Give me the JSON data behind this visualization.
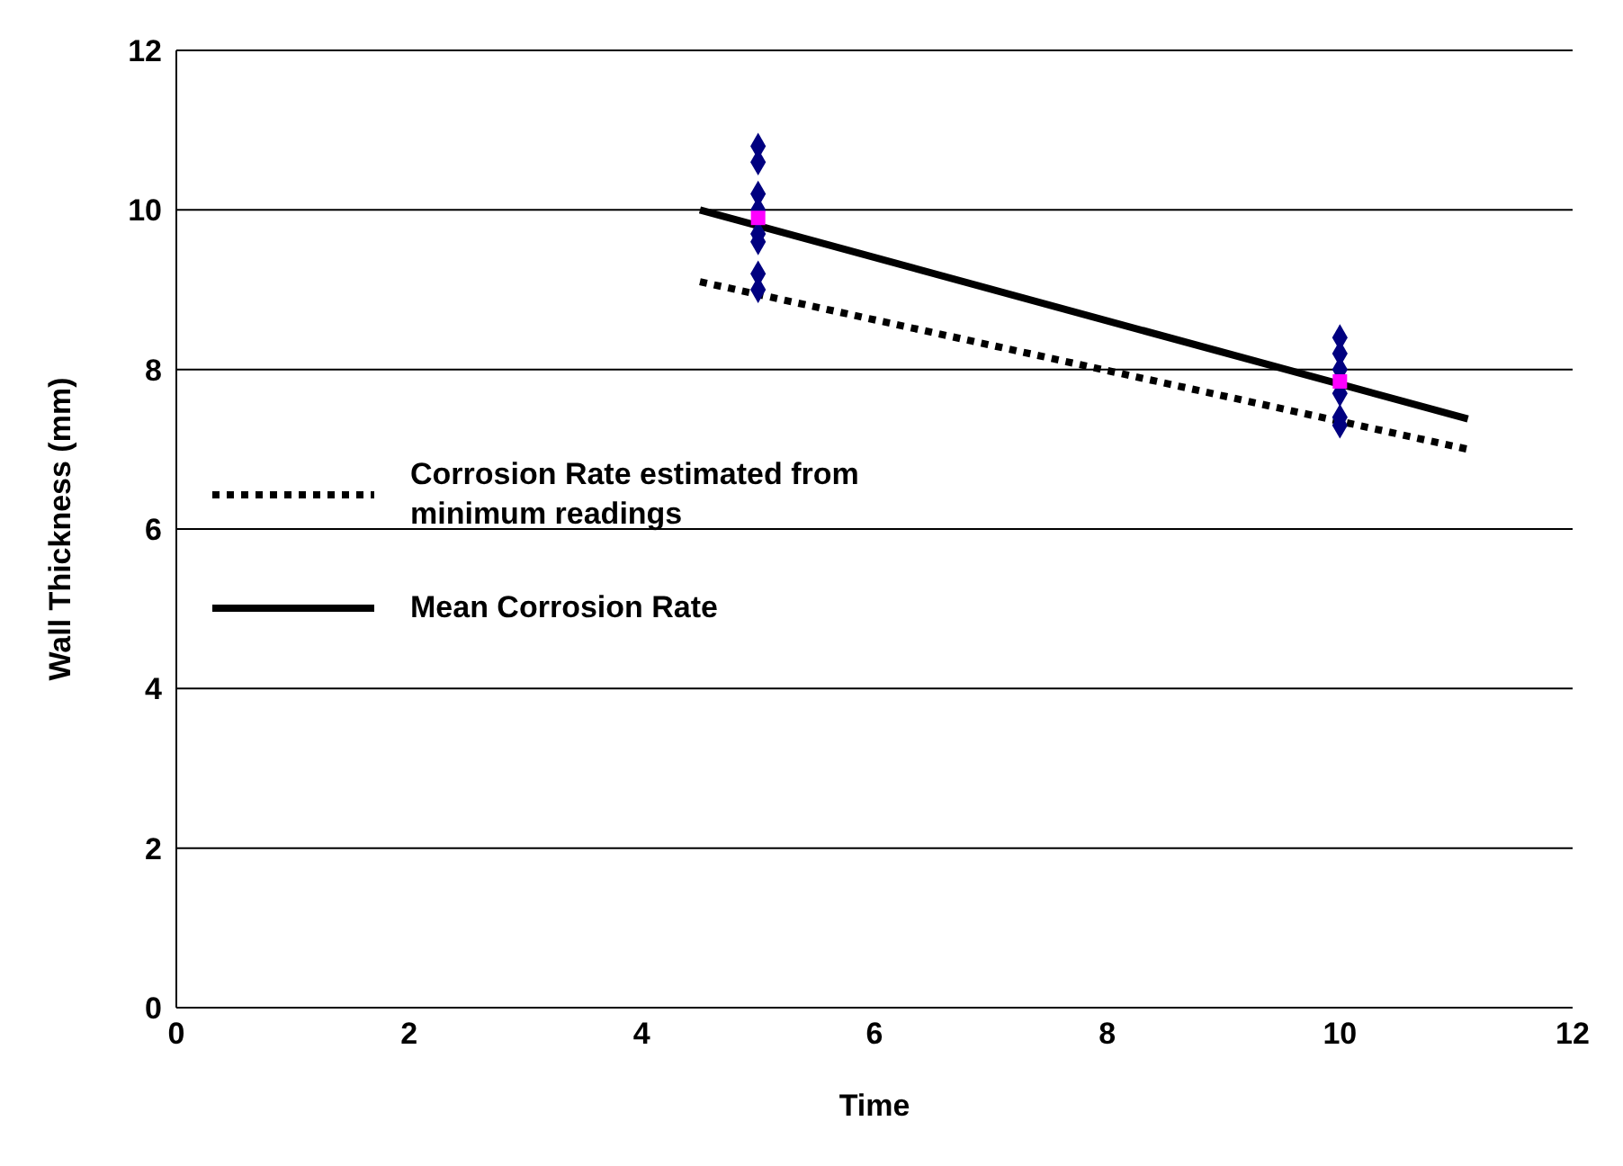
{
  "chart_data": {
    "type": "scatter",
    "xlabel": "Time",
    "ylabel": "Wall Thickness (mm)",
    "xlim": [
      0,
      12
    ],
    "xticks": [
      0,
      2,
      4,
      6,
      8,
      10,
      12
    ],
    "ylim": [
      0,
      12
    ],
    "yticks": [
      0,
      2,
      4,
      6,
      8,
      10,
      12
    ],
    "grid": "y",
    "legend": "left",
    "series": [
      {
        "type": "scatter",
        "color": "#000080",
        "marker": "diamond",
        "x": [
          5,
          5,
          5,
          5,
          5,
          5,
          5,
          5,
          10,
          10,
          10,
          10,
          10,
          10
        ],
        "values": [
          10.8,
          10.6,
          10.2,
          10.0,
          9.7,
          9.6,
          9.2,
          9.0,
          8.4,
          8.2,
          8.0,
          7.7,
          7.4,
          7.3
        ]
      },
      {
        "type": "scatter",
        "color": "#ff00ff",
        "marker": "square",
        "x": [
          5,
          10
        ],
        "values": [
          9.9,
          7.85
        ]
      },
      {
        "type": "line",
        "name": "Corrosion Rate estimated from minimum readings",
        "color": "#000000",
        "line_style": "dotted",
        "marker": "none",
        "x": [
          4.5,
          11.1
        ],
        "values": [
          9.1,
          7.0
        ]
      },
      {
        "type": "line",
        "name": "Mean Corrosion Rate",
        "color": "#000000",
        "line_style": "solid",
        "marker": "none",
        "x": [
          4.5,
          11.1
        ],
        "values": [
          10.0,
          7.38
        ]
      }
    ]
  }
}
